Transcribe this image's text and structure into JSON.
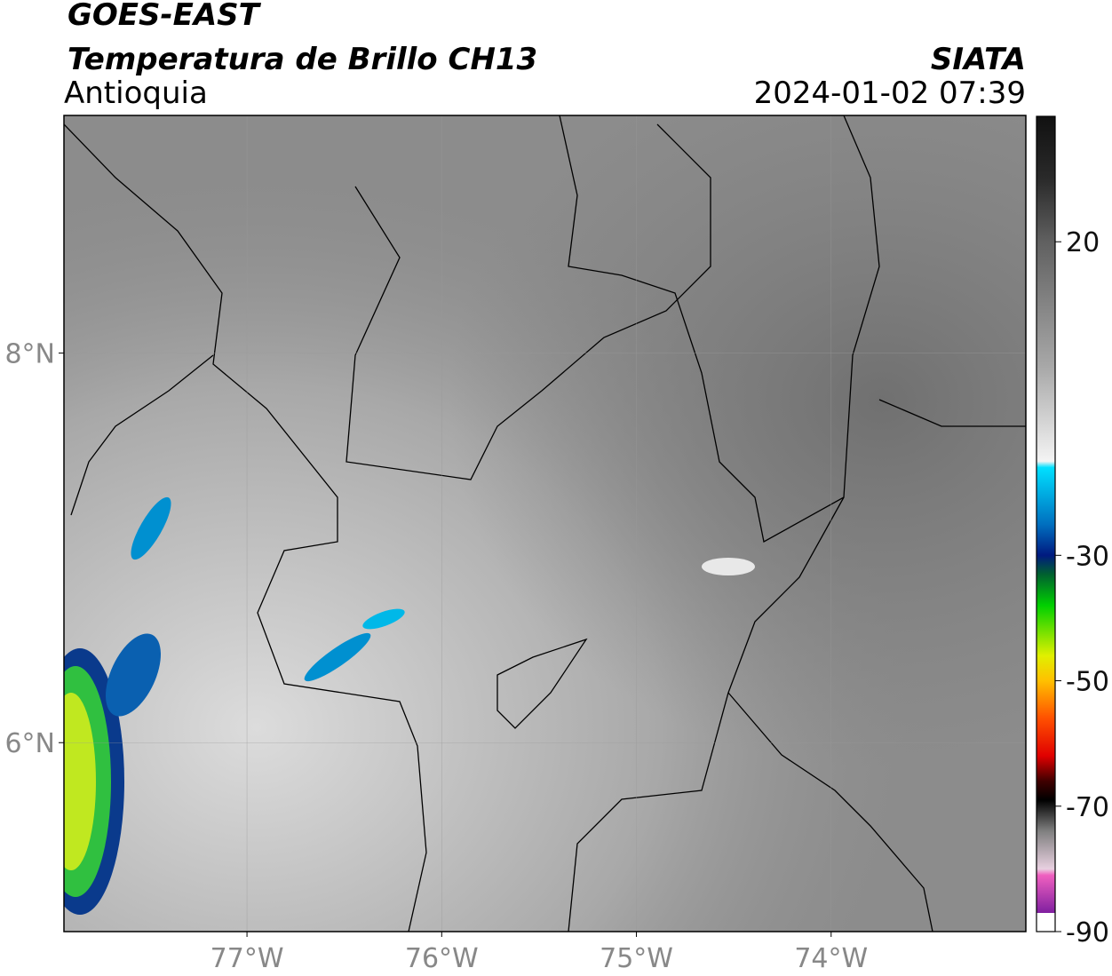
{
  "header": {
    "title": "GOES-EAST",
    "subtitle": "Temperatura de Brillo CH13",
    "region": "Antioquia",
    "source": "SIATA",
    "datetime": "2024-01-02 07:39"
  },
  "map": {
    "xlim": [
      -77.94,
      -73.0
    ],
    "ylim": [
      5.03,
      9.22
    ],
    "xticks": [
      {
        "value": -77,
        "label": "77°W"
      },
      {
        "value": -76,
        "label": "76°W"
      },
      {
        "value": -75,
        "label": "75°W"
      },
      {
        "value": -74,
        "label": "74°W"
      }
    ],
    "yticks": [
      {
        "value": 8,
        "label": "8°N"
      },
      {
        "value": 6,
        "label": "6°N"
      }
    ],
    "grid": true
  },
  "colorbar": {
    "lim": [
      -90,
      40
    ],
    "ticks": [
      20,
      -30,
      -50,
      -70,
      -90
    ],
    "colormap": [
      [
        40,
        "#111111"
      ],
      [
        30,
        "#2a2a2a"
      ],
      [
        20,
        "#606060"
      ],
      [
        0,
        "#a8a8a8"
      ],
      [
        -15,
        "#f4f4f4"
      ],
      [
        -16,
        "#00e0ff"
      ],
      [
        -25,
        "#0070c0"
      ],
      [
        -30,
        "#001a80"
      ],
      [
        -33,
        "#006030"
      ],
      [
        -38,
        "#00d000"
      ],
      [
        -46,
        "#e0f000"
      ],
      [
        -50,
        "#ffc000"
      ],
      [
        -56,
        "#ff5000"
      ],
      [
        -62,
        "#e00000"
      ],
      [
        -66,
        "#400000"
      ],
      [
        -69,
        "#000000"
      ],
      [
        -74,
        "#808080"
      ],
      [
        -80,
        "#e8d0e0"
      ],
      [
        -81,
        "#f060c0"
      ],
      [
        -87,
        "#8020a0"
      ],
      [
        -87,
        "#ffffff"
      ],
      [
        -90,
        "#ffffff"
      ]
    ]
  }
}
